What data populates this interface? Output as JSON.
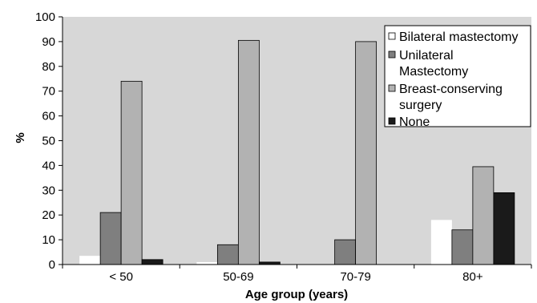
{
  "chart_data": {
    "type": "bar",
    "title": "",
    "xlabel": "Age group (years)",
    "ylabel": "%",
    "ylim": [
      0,
      100
    ],
    "yticks": [
      0,
      10,
      20,
      30,
      40,
      50,
      60,
      70,
      80,
      90,
      100
    ],
    "grid": false,
    "legend_position": "top-right",
    "categories": [
      "< 50",
      "50-69",
      "70-79",
      "80+"
    ],
    "series": [
      {
        "name": "Bilateral mastectomy",
        "color": "#ffffff",
        "values": [
          3.5,
          1,
          0,
          18
        ]
      },
      {
        "name": "Unilateral Mastectomy",
        "color": "#7f7f7f",
        "values": [
          21,
          8,
          10,
          14
        ]
      },
      {
        "name": "Breast-conserving surgery",
        "color": "#b2b2b2",
        "values": [
          74,
          90.5,
          90,
          39.5
        ]
      },
      {
        "name": "None",
        "color": "#1a1a1a",
        "values": [
          2,
          1,
          0,
          29
        ]
      }
    ],
    "legend_lines": [
      [
        "Bilateral mastectomy"
      ],
      [
        "Unilateral",
        "Mastectomy"
      ],
      [
        "Breast-conserving",
        "surgery"
      ],
      [
        "None"
      ]
    ]
  },
  "colors": {
    "plot_background": "#d7d7d7",
    "bar_stroke": "#000000"
  }
}
